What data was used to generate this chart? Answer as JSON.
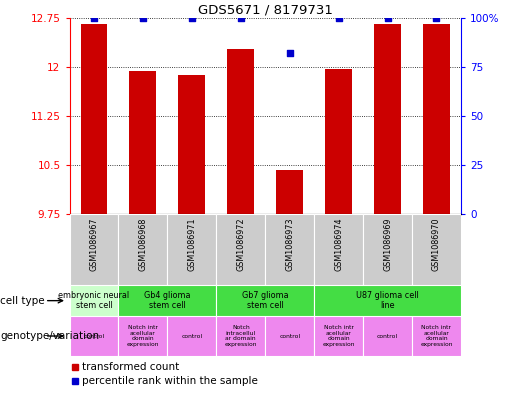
{
  "title": "GDS5671 / 8179731",
  "samples": [
    "GSM1086967",
    "GSM1086968",
    "GSM1086971",
    "GSM1086972",
    "GSM1086973",
    "GSM1086974",
    "GSM1086969",
    "GSM1086970"
  ],
  "transformed_counts": [
    12.65,
    11.93,
    11.88,
    12.27,
    10.43,
    11.97,
    12.65,
    12.65
  ],
  "percentile_ranks": [
    100,
    100,
    100,
    100,
    82,
    100,
    100,
    100
  ],
  "ylim_left": [
    9.75,
    12.75
  ],
  "ylim_right": [
    0,
    100
  ],
  "yticks_left": [
    9.75,
    10.5,
    11.25,
    12.0,
    12.75
  ],
  "yticks_right": [
    0,
    25,
    50,
    75,
    100
  ],
  "ytick_left_labels": [
    "9.75",
    "10.5",
    "11.25",
    "12",
    "12.75"
  ],
  "ytick_right_labels": [
    "0",
    "25",
    "50",
    "75",
    "100%"
  ],
  "bar_color": "#cc0000",
  "dot_color": "#0000cc",
  "bar_width": 0.55,
  "cell_types": [
    {
      "label": "embryonic neural\nstem cell",
      "start": 0,
      "end": 1,
      "color": "#ccffcc"
    },
    {
      "label": "Gb4 glioma\nstem cell",
      "start": 1,
      "end": 3,
      "color": "#44dd44"
    },
    {
      "label": "Gb7 glioma\nstem cell",
      "start": 3,
      "end": 5,
      "color": "#44dd44"
    },
    {
      "label": "U87 glioma cell\nline",
      "start": 5,
      "end": 8,
      "color": "#44dd44"
    }
  ],
  "genotype_labels": [
    {
      "label": "control",
      "start": 0,
      "end": 1,
      "color": "#ee88ee"
    },
    {
      "label": "Notch intr\nacellular\ndomain\nexpression",
      "start": 1,
      "end": 2,
      "color": "#ee88ee"
    },
    {
      "label": "control",
      "start": 2,
      "end": 3,
      "color": "#ee88ee"
    },
    {
      "label": "Notch\nintracellul\nar domain\nexpression",
      "start": 3,
      "end": 4,
      "color": "#ee88ee"
    },
    {
      "label": "control",
      "start": 4,
      "end": 5,
      "color": "#ee88ee"
    },
    {
      "label": "Notch intr\nacellular\ndomain\nexpression",
      "start": 5,
      "end": 6,
      "color": "#ee88ee"
    },
    {
      "label": "control",
      "start": 6,
      "end": 7,
      "color": "#ee88ee"
    },
    {
      "label": "Notch intr\nacellular\ndomain\nexpression",
      "start": 7,
      "end": 8,
      "color": "#ee88ee"
    }
  ],
  "sample_bg_color": "#cccccc",
  "fig_bg": "#ffffff"
}
